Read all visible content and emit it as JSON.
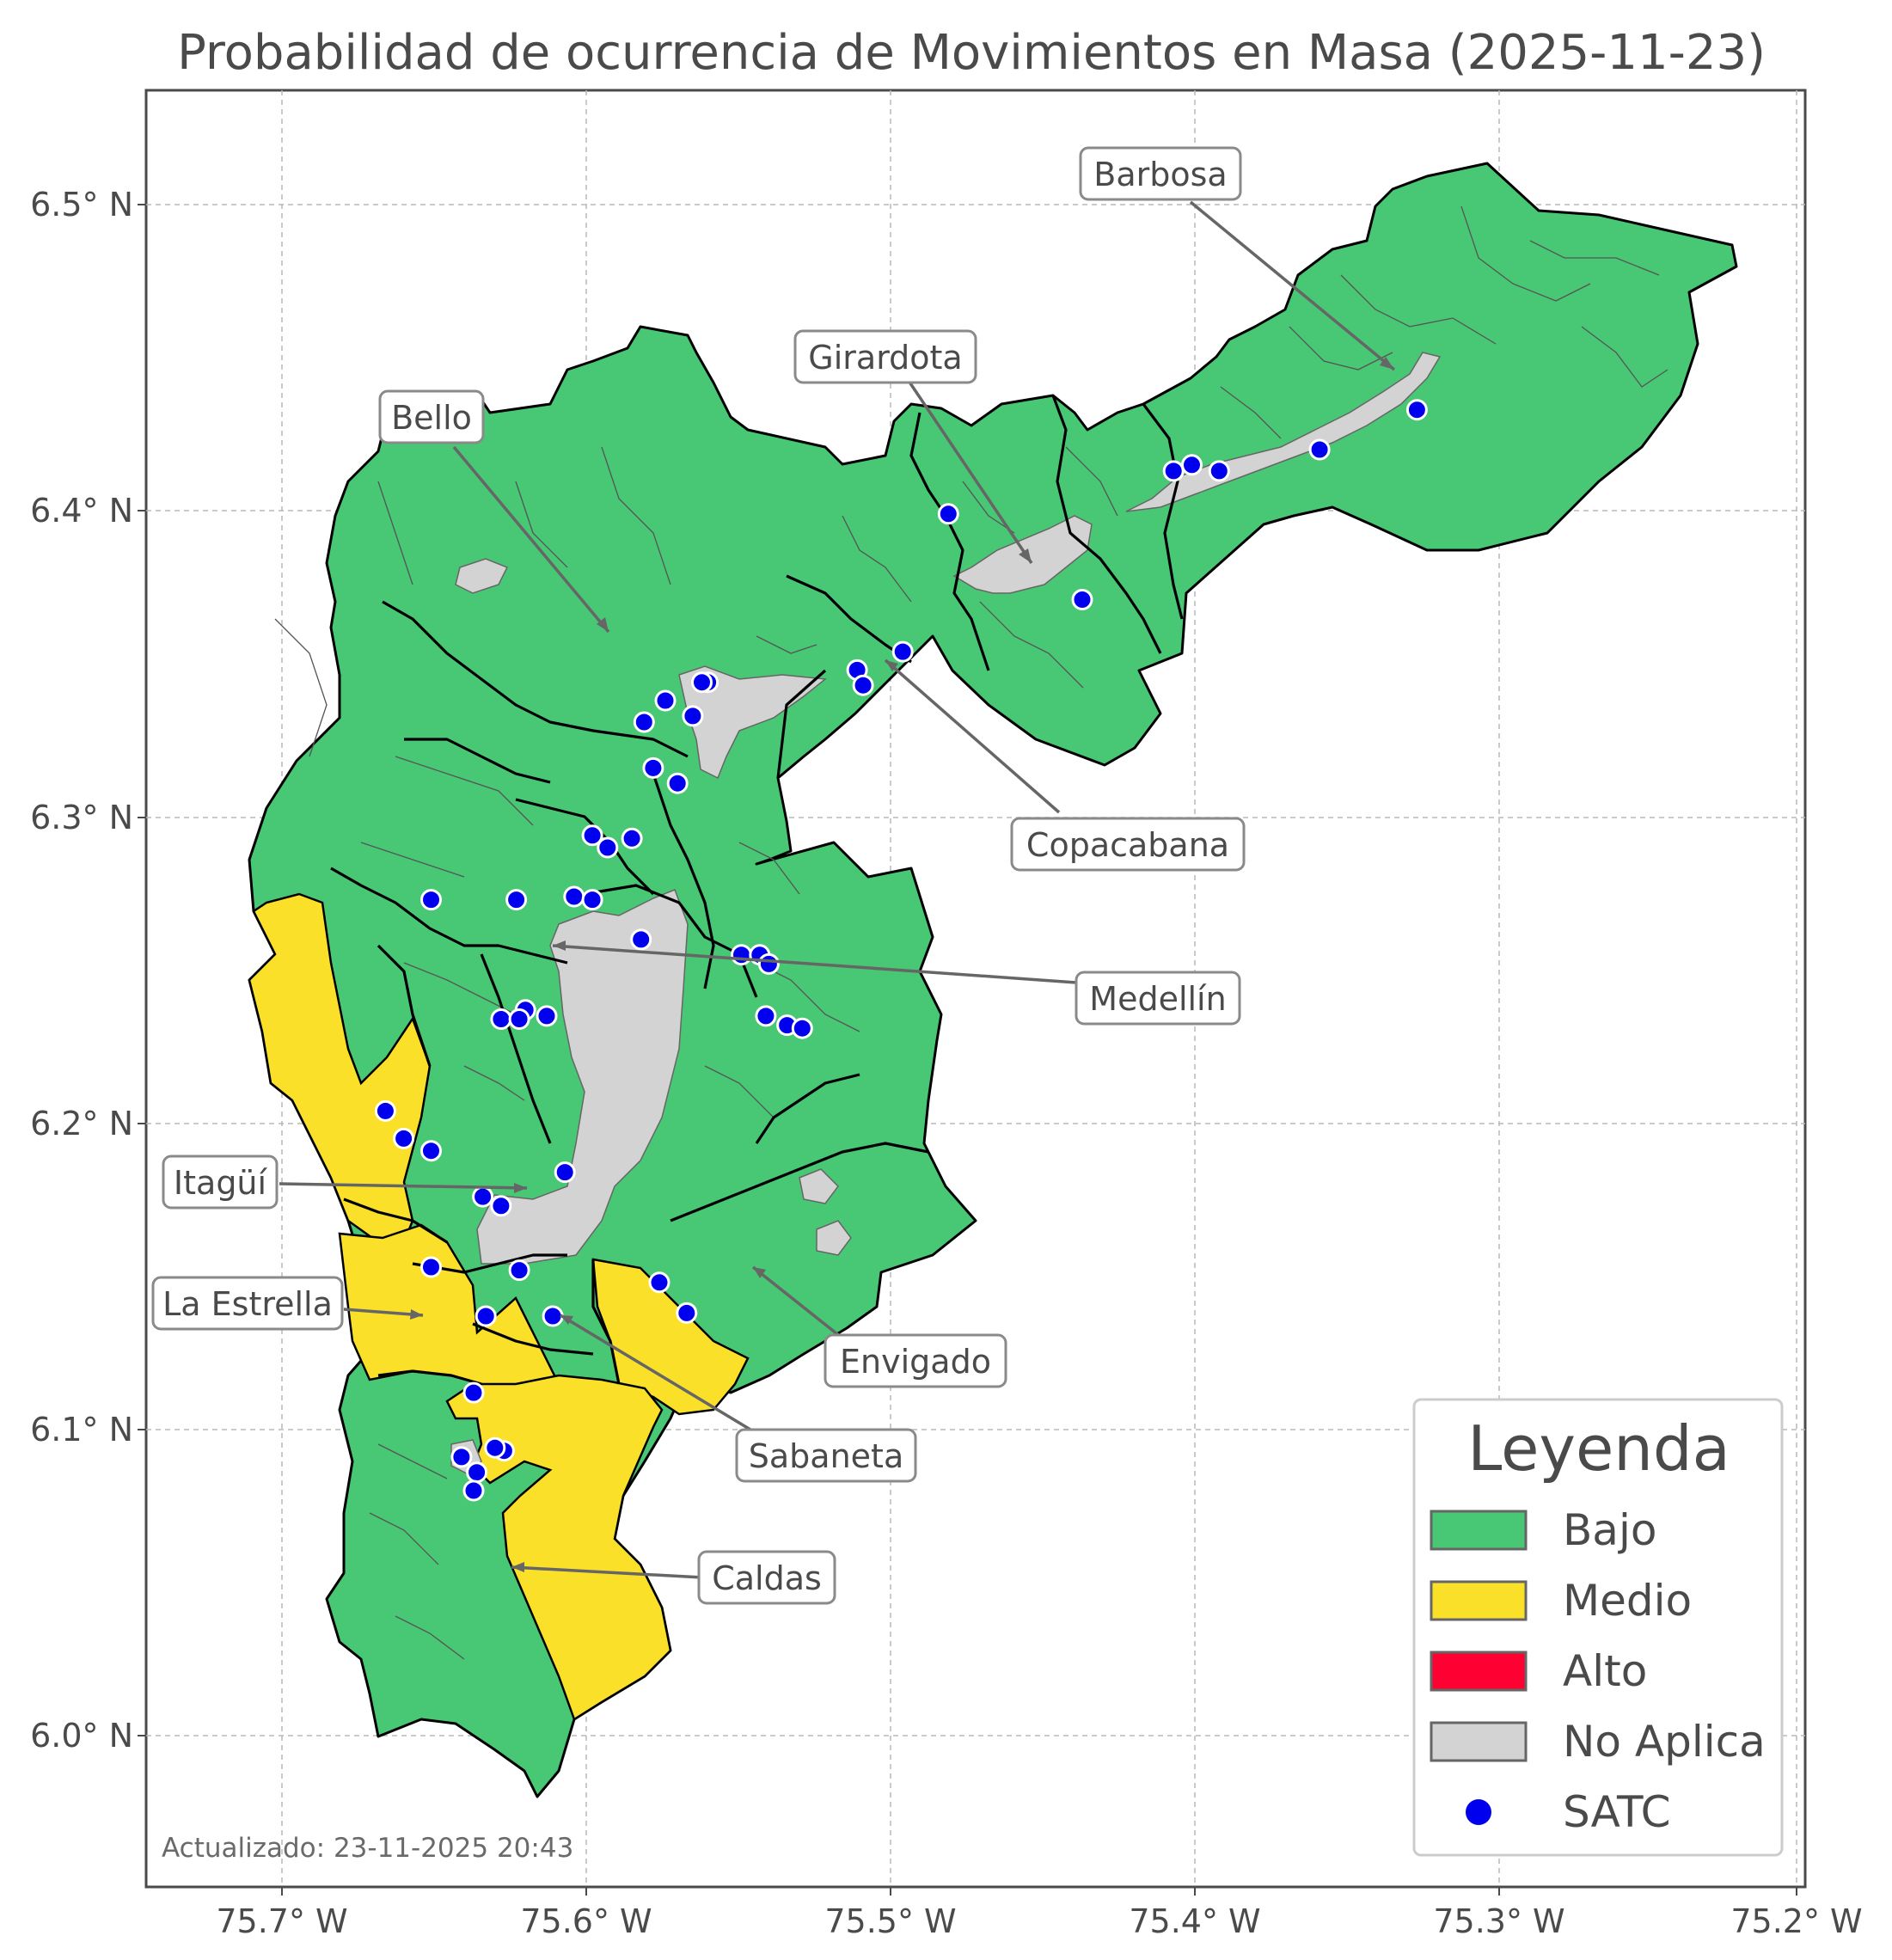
{
  "title": "Probabilidad de ocurrencia de Movimientos en Masa (2025-11-23)",
  "updated": "Actualizado: 23-11-2025 20:43",
  "axes": {
    "x_ticks": [
      "75.7° W",
      "75.6° W",
      "75.5° W",
      "75.4° W",
      "75.3° W",
      "75.2° W"
    ],
    "y_ticks": [
      "6.5° N",
      "6.4° N",
      "6.3° N",
      "6.2° N",
      "6.1° N",
      "6.0° N"
    ],
    "x_range_deg_w": [
      75.745,
      75.197
    ],
    "y_range_deg_n": [
      5.955,
      6.538
    ],
    "grid": true
  },
  "municipalities": [
    {
      "name": "Barbosa"
    },
    {
      "name": "Girardota"
    },
    {
      "name": "Bello"
    },
    {
      "name": "Copacabana"
    },
    {
      "name": "Medellín"
    },
    {
      "name": "Itagüí"
    },
    {
      "name": "La Estrella"
    },
    {
      "name": "Envigado"
    },
    {
      "name": "Sabaneta"
    },
    {
      "name": "Caldas"
    }
  ],
  "legend": {
    "title": "Leyenda",
    "items": [
      {
        "label": "Bajo",
        "color": "#48c774",
        "kind": "patch"
      },
      {
        "label": "Medio",
        "color": "#fbe02a",
        "kind": "patch"
      },
      {
        "label": "Alto",
        "color": "#ff0033",
        "kind": "patch"
      },
      {
        "label": "No Aplica",
        "color": "#d3d3d3",
        "kind": "patch"
      },
      {
        "label": "SATC",
        "color": "#0000ee",
        "kind": "dot"
      }
    ]
  },
  "satc_stations": [
    {
      "lon": -75.327,
      "lat": 6.433
    },
    {
      "lon": -75.359,
      "lat": 6.42
    },
    {
      "lon": -75.392,
      "lat": 6.413
    },
    {
      "lon": -75.401,
      "lat": 6.415
    },
    {
      "lon": -75.407,
      "lat": 6.413
    },
    {
      "lon": -75.481,
      "lat": 6.399
    },
    {
      "lon": -75.437,
      "lat": 6.371
    },
    {
      "lon": -75.496,
      "lat": 6.354
    },
    {
      "lon": -75.511,
      "lat": 6.348
    },
    {
      "lon": -75.509,
      "lat": 6.343
    },
    {
      "lon": -75.56,
      "lat": 6.344
    },
    {
      "lon": -75.562,
      "lat": 6.344
    },
    {
      "lon": -75.565,
      "lat": 6.333
    },
    {
      "lon": -75.574,
      "lat": 6.338
    },
    {
      "lon": -75.581,
      "lat": 6.331
    },
    {
      "lon": -75.578,
      "lat": 6.316
    },
    {
      "lon": -75.57,
      "lat": 6.311
    },
    {
      "lon": -75.598,
      "lat": 6.294
    },
    {
      "lon": -75.585,
      "lat": 6.293
    },
    {
      "lon": -75.593,
      "lat": 6.29
    },
    {
      "lon": -75.651,
      "lat": 6.273
    },
    {
      "lon": -75.623,
      "lat": 6.273
    },
    {
      "lon": -75.604,
      "lat": 6.274
    },
    {
      "lon": -75.598,
      "lat": 6.273
    },
    {
      "lon": -75.582,
      "lat": 6.26
    },
    {
      "lon": -75.549,
      "lat": 6.255
    },
    {
      "lon": -75.543,
      "lat": 6.255
    },
    {
      "lon": -75.54,
      "lat": 6.252
    },
    {
      "lon": -75.541,
      "lat": 6.235
    },
    {
      "lon": -75.534,
      "lat": 6.232
    },
    {
      "lon": -75.529,
      "lat": 6.231
    },
    {
      "lon": -75.62,
      "lat": 6.237
    },
    {
      "lon": -75.628,
      "lat": 6.234
    },
    {
      "lon": -75.622,
      "lat": 6.234
    },
    {
      "lon": -75.613,
      "lat": 6.235
    },
    {
      "lon": -75.666,
      "lat": 6.204
    },
    {
      "lon": -75.66,
      "lat": 6.195
    },
    {
      "lon": -75.651,
      "lat": 6.191
    },
    {
      "lon": -75.607,
      "lat": 6.184
    },
    {
      "lon": -75.634,
      "lat": 6.176
    },
    {
      "lon": -75.628,
      "lat": 6.173
    },
    {
      "lon": -75.651,
      "lat": 6.153
    },
    {
      "lon": -75.622,
      "lat": 6.152
    },
    {
      "lon": -75.576,
      "lat": 6.148
    },
    {
      "lon": -75.567,
      "lat": 6.138
    },
    {
      "lon": -75.633,
      "lat": 6.137
    },
    {
      "lon": -75.611,
      "lat": 6.137
    },
    {
      "lon": -75.637,
      "lat": 6.112
    },
    {
      "lon": -75.641,
      "lat": 6.091
    },
    {
      "lon": -75.627,
      "lat": 6.093
    },
    {
      "lon": -75.63,
      "lat": 6.094
    },
    {
      "lon": -75.636,
      "lat": 6.086
    },
    {
      "lon": -75.637,
      "lat": 6.08
    }
  ]
}
